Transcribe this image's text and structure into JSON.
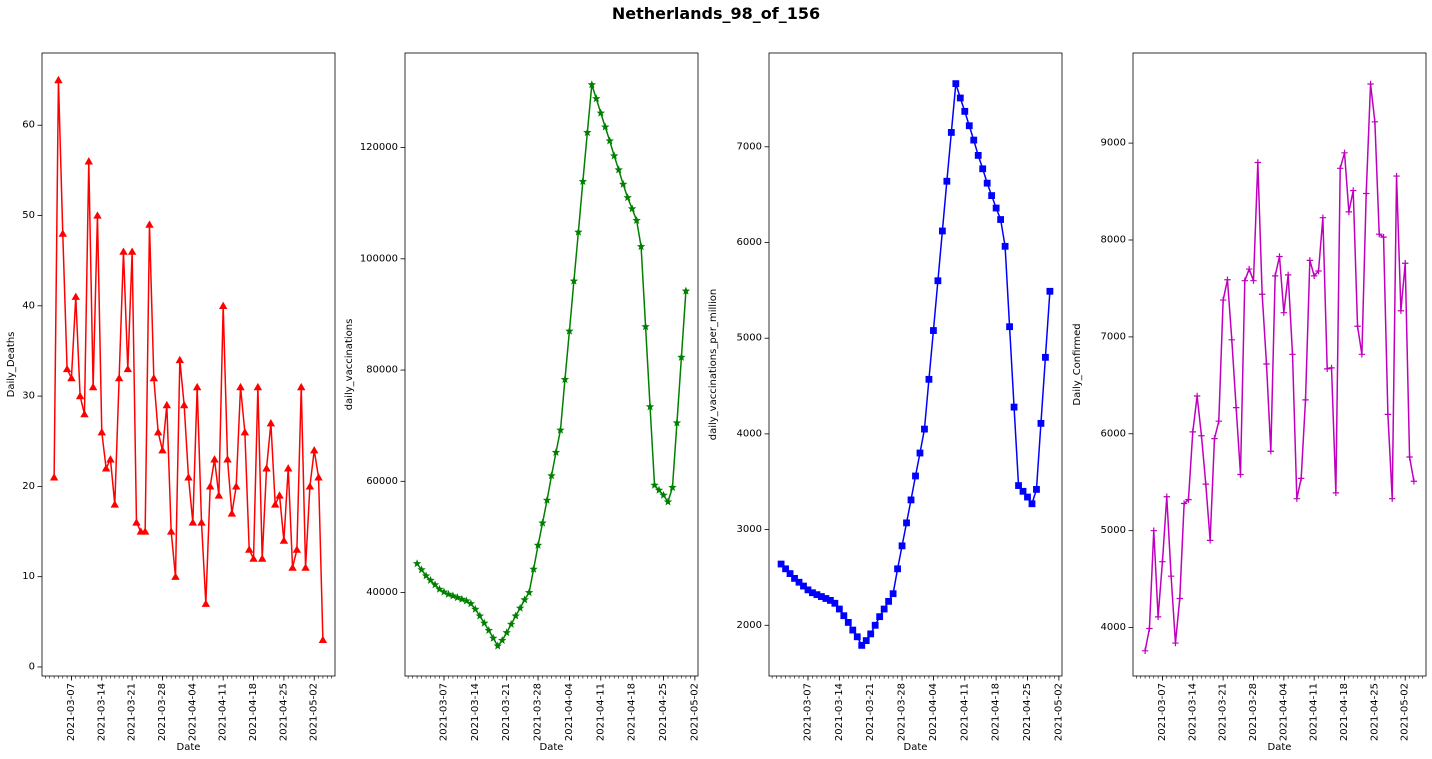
{
  "figure": {
    "title": "Netherlands_98_of_156"
  },
  "chart_data": [
    {
      "type": "line",
      "xlabel": "Date",
      "ylabel": "Daily_Deaths",
      "color": "#ff0000",
      "marker": "triangle",
      "x_start": "2021-03-03",
      "x_end": "2021-05-03",
      "x_tick_dates": [
        "2021-03-07",
        "2021-03-14",
        "2021-03-21",
        "2021-03-28",
        "2021-04-04",
        "2021-04-11",
        "2021-04-18",
        "2021-04-25",
        "2021-05-02"
      ],
      "ylim": [
        -1,
        68
      ],
      "y_ticks": [
        0,
        10,
        20,
        30,
        40,
        50,
        60
      ],
      "y_tick_labels": [
        "0",
        "10",
        "20",
        "30",
        "40",
        "50",
        "60"
      ],
      "values": [
        21,
        65,
        48,
        33,
        32,
        41,
        30,
        28,
        56,
        31,
        50,
        26,
        22,
        23,
        18,
        32,
        46,
        33,
        46,
        16,
        15,
        15,
        49,
        32,
        26,
        24,
        29,
        15,
        10,
        34,
        29,
        21,
        16,
        31,
        16,
        7,
        20,
        23,
        19,
        40,
        23,
        17,
        20,
        31,
        26,
        13,
        12,
        31,
        12,
        22,
        27,
        18,
        19,
        14,
        22,
        11,
        13,
        31,
        11,
        20,
        24,
        21,
        3
      ]
    },
    {
      "type": "line",
      "xlabel": "Date",
      "ylabel": "daily_vaccinations",
      "color": "#008000",
      "marker": "star",
      "x_start": "2021-03-01",
      "x_end": "2021-05-03",
      "x_tick_dates": [
        "2021-03-07",
        "2021-03-14",
        "2021-03-21",
        "2021-03-28",
        "2021-04-04",
        "2021-04-11",
        "2021-04-18",
        "2021-04-25",
        "2021-05-02"
      ],
      "ylim": [
        25000,
        137000
      ],
      "y_ticks": [
        40000,
        60000,
        80000,
        100000,
        120000
      ],
      "y_tick_labels": [
        "40000",
        "60000",
        "80000",
        "100000",
        "120000"
      ],
      "values": [
        45200,
        44100,
        43000,
        42200,
        41400,
        40600,
        40100,
        39700,
        39400,
        39100,
        38800,
        38500,
        38000,
        37000,
        35800,
        34500,
        33200,
        31800,
        30400,
        31400,
        32800,
        34300,
        35800,
        37200,
        38700,
        40000,
        44200,
        48500,
        52500,
        56600,
        61000,
        65200,
        69200,
        78300,
        87000,
        96000,
        104800,
        113900,
        122700,
        131300,
        128800,
        126200,
        123700,
        121200,
        118500,
        116000,
        113400,
        111000,
        109000,
        106900,
        102200,
        87800,
        73400,
        59300,
        58400,
        57500,
        56300,
        58900,
        70500,
        82300,
        94200
      ]
    },
    {
      "type": "line",
      "xlabel": "Date",
      "ylabel": "daily_vaccinations_per_million",
      "color": "#0000ff",
      "marker": "square",
      "x_start": "2021-03-01",
      "x_end": "2021-05-03",
      "x_tick_dates": [
        "2021-03-07",
        "2021-03-14",
        "2021-03-21",
        "2021-03-28",
        "2021-04-04",
        "2021-04-11",
        "2021-04-18",
        "2021-04-25",
        "2021-05-02"
      ],
      "ylim": [
        1470,
        7980
      ],
      "y_ticks": [
        2000,
        3000,
        4000,
        5000,
        6000,
        7000
      ],
      "y_tick_labels": [
        "2000",
        "3000",
        "4000",
        "5000",
        "6000",
        "7000"
      ],
      "values": [
        2640,
        2590,
        2540,
        2490,
        2450,
        2410,
        2370,
        2340,
        2320,
        2300,
        2280,
        2260,
        2230,
        2170,
        2100,
        2030,
        1950,
        1880,
        1790,
        1840,
        1910,
        2000,
        2090,
        2170,
        2250,
        2330,
        2590,
        2830,
        3070,
        3310,
        3560,
        3800,
        4050,
        4570,
        5080,
        5600,
        6120,
        6640,
        7150,
        7660,
        7510,
        7370,
        7220,
        7070,
        6910,
        6770,
        6620,
        6490,
        6360,
        6240,
        5960,
        5120,
        4280,
        3460,
        3400,
        3340,
        3270,
        3420,
        4110,
        4800,
        5490
      ]
    },
    {
      "type": "line",
      "xlabel": "Date",
      "ylabel": "Daily_Confirmed",
      "color": "#bf00bf",
      "marker": "plus",
      "x_start": "2021-03-03",
      "x_end": "2021-05-03",
      "x_tick_dates": [
        "2021-03-07",
        "2021-03-14",
        "2021-03-21",
        "2021-03-28",
        "2021-04-04",
        "2021-04-11",
        "2021-04-18",
        "2021-04-25",
        "2021-05-02"
      ],
      "ylim": [
        3500,
        9930
      ],
      "y_ticks": [
        4000,
        5000,
        6000,
        7000,
        8000,
        9000
      ],
      "y_tick_labels": [
        "4000",
        "5000",
        "6000",
        "7000",
        "8000",
        "9000"
      ],
      "values": [
        3760,
        3990,
        5000,
        4110,
        4680,
        5350,
        4530,
        3840,
        4300,
        5280,
        5320,
        6020,
        6390,
        5980,
        5480,
        4900,
        5950,
        6130,
        7380,
        7590,
        6970,
        6270,
        5580,
        7580,
        7700,
        7580,
        8800,
        7440,
        6720,
        5820,
        7630,
        7830,
        7250,
        7640,
        6820,
        5330,
        5540,
        6350,
        7790,
        7630,
        7680,
        8230,
        6670,
        6680,
        5390,
        8740,
        8900,
        8290,
        8510,
        7110,
        6820,
        8480,
        9610,
        9220,
        8060,
        8030,
        6200,
        5330,
        8660,
        7270,
        7760,
        5760,
        5510
      ]
    }
  ]
}
